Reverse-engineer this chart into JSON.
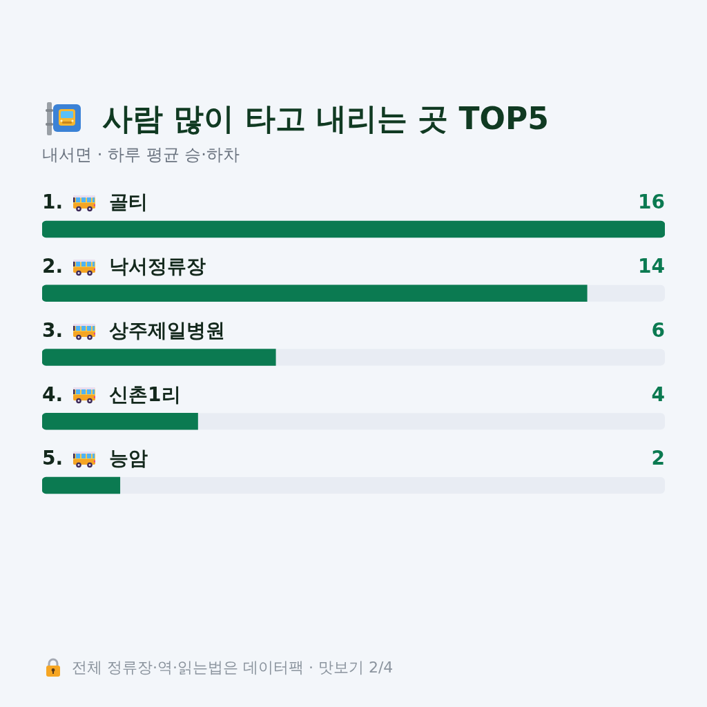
{
  "chart_data": {
    "type": "bar",
    "orientation": "horizontal",
    "title": "사람 많이 타고 내리는 곳 TOP5",
    "subtitle": "내서면 · 하루 평균 승·하차",
    "categories": [
      "1. 골티",
      "2. 낙서정류장",
      "3. 상주제일병원",
      "4. 신촌1리",
      "5. 능암"
    ],
    "values": [
      16,
      14,
      6,
      4,
      2
    ],
    "color": "#0b7a51",
    "xlim": [
      0,
      16
    ],
    "data_labels": true,
    "tick_labels": "y",
    "annotations": [
      "전체 정류장·역·읽는법은 데이터팩 · 맛보기 2/4"
    ]
  }
}
